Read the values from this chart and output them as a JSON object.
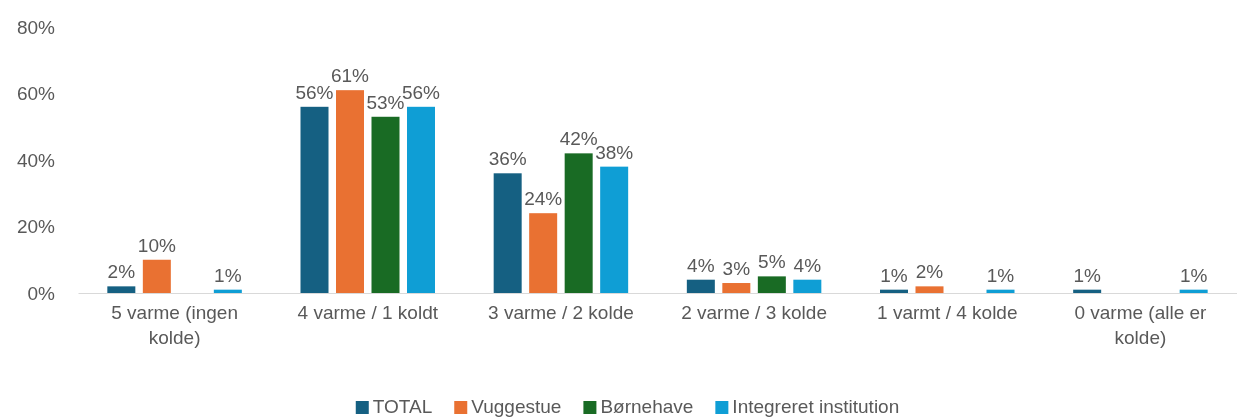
{
  "chart_data": {
    "type": "bar",
    "categories": [
      "5 varme (ingen kolde)",
      "4 varme / 1 koldt",
      "3 varme / 2 kolde",
      "2 varme / 3 kolde",
      "1 varmt / 4 kolde",
      "0 varme (alle er kolde)"
    ],
    "series": [
      {
        "name": "TOTAL",
        "color": "#156082",
        "values": [
          2,
          56,
          36,
          4,
          1,
          1
        ],
        "value_labels": [
          "2%",
          "56%",
          "36%",
          "4%",
          "1%",
          "1%"
        ]
      },
      {
        "name": "Vuggestue",
        "color": "#e97132",
        "values": [
          10,
          61,
          24,
          3,
          2,
          null
        ],
        "value_labels": [
          "10%",
          "61%",
          "24%",
          "3%",
          "2%",
          null
        ]
      },
      {
        "name": "Børnehave",
        "color": "#196b24",
        "values": [
          null,
          53,
          42,
          5,
          null,
          null
        ],
        "value_labels": [
          null,
          "53%",
          "42%",
          "5%",
          null,
          null
        ]
      },
      {
        "name": "Integreret institution",
        "color": "#0f9ed5",
        "values": [
          1,
          56,
          38,
          4,
          1,
          1
        ],
        "value_labels": [
          "1%",
          "56%",
          "38%",
          "4%",
          "1%",
          "1%"
        ]
      }
    ],
    "ylim": [
      0,
      80
    ],
    "yticks": [
      {
        "value": 0,
        "label": "0%"
      },
      {
        "value": 20,
        "label": "20%"
      },
      {
        "value": 40,
        "label": "40%"
      },
      {
        "value": 60,
        "label": "60%"
      },
      {
        "value": 80,
        "label": "80%"
      }
    ],
    "legend": "bottom"
  }
}
